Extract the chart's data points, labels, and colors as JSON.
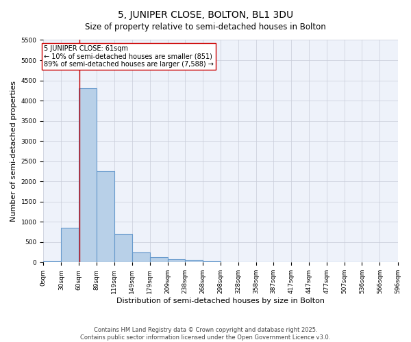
{
  "title": "5, JUNIPER CLOSE, BOLTON, BL1 3DU",
  "subtitle": "Size of property relative to semi-detached houses in Bolton",
  "xlabel": "Distribution of semi-detached houses by size in Bolton",
  "ylabel": "Number of semi-detached properties",
  "bin_edges": [
    0,
    30,
    60,
    89,
    119,
    149,
    179,
    209,
    238,
    268,
    298,
    328,
    358,
    387,
    417,
    447,
    477,
    507,
    536,
    566,
    596
  ],
  "bar_heights": [
    30,
    850,
    4300,
    2250,
    700,
    250,
    130,
    80,
    50,
    30,
    5,
    0,
    0,
    0,
    0,
    0,
    0,
    0,
    0,
    0
  ],
  "bar_color": "#b8d0e8",
  "bar_edge_color": "#6699cc",
  "bar_edge_width": 0.8,
  "property_line_x": 61,
  "property_line_color": "#cc0000",
  "annotation_text": "5 JUNIPER CLOSE: 61sqm\n← 10% of semi-detached houses are smaller (851)\n89% of semi-detached houses are larger (7,588) →",
  "annotation_box_color": "#ffffff",
  "annotation_edge_color": "#cc0000",
  "ylim": [
    0,
    5500
  ],
  "yticks": [
    0,
    500,
    1000,
    1500,
    2000,
    2500,
    3000,
    3500,
    4000,
    4500,
    5000,
    5500
  ],
  "background_color": "#eef2fa",
  "grid_color": "#c8ccd8",
  "footer_text": "Contains HM Land Registry data © Crown copyright and database right 2025.\nContains public sector information licensed under the Open Government Licence v3.0.",
  "title_fontsize": 10,
  "subtitle_fontsize": 8.5,
  "tick_fontsize": 6.5,
  "label_fontsize": 8,
  "annotation_fontsize": 7,
  "footer_fontsize": 6
}
